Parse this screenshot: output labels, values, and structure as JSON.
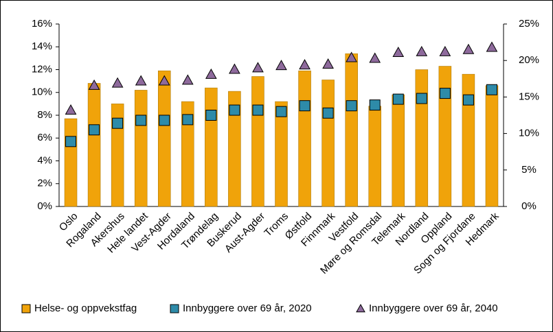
{
  "chart_data": {
    "type": "bar_line",
    "categories": [
      "Oslo",
      "Rogaland",
      "Akershus",
      "Hele landet",
      "Vest-Agder",
      "Hordaland",
      "Trøndelag",
      "Buskerud",
      "Aust-Agder",
      "Troms",
      "Østfold",
      "Finnmark",
      "Vestfold",
      "Møre og Romsdal",
      "Telemark",
      "Nordland",
      "Oppland",
      "Sogn og Fjordane",
      "Hedmark"
    ],
    "series": [
      {
        "name": "Helse- og oppvekstfag",
        "color": "#f0a30a",
        "kind": "bar",
        "axis": "y",
        "values": [
          7.7,
          10.8,
          9.0,
          10.2,
          11.9,
          9.2,
          10.4,
          10.1,
          11.4,
          9.2,
          11.9,
          11.1,
          13.4,
          8.8,
          9.8,
          12.0,
          12.3,
          11.6,
          10.6
        ]
      },
      {
        "name": "Innbyggere over 69 år, 2020",
        "color": "#2e8ba9",
        "kind": "square",
        "axis": "y2",
        "values": [
          8.9,
          10.5,
          11.4,
          11.8,
          11.8,
          11.9,
          12.5,
          13.2,
          13.2,
          13.0,
          13.8,
          12.8,
          13.8,
          13.9,
          14.7,
          14.8,
          15.5,
          14.6,
          16.0
        ]
      },
      {
        "name": "Innbyggere over 69 år, 2040",
        "color": "#8e6a9c",
        "kind": "triangle",
        "axis": "y2",
        "values": [
          13.2,
          16.6,
          16.9,
          17.2,
          17.2,
          17.3,
          18.1,
          18.8,
          19.0,
          19.3,
          19.4,
          19.5,
          20.4,
          20.3,
          21.1,
          21.2,
          21.2,
          21.5,
          21.8
        ]
      }
    ],
    "ylim": [
      0,
      16
    ],
    "yticks": [
      {
        "value": 0,
        "label": "0%"
      },
      {
        "value": 2,
        "label": "2%"
      },
      {
        "value": 4,
        "label": "4%"
      },
      {
        "value": 6,
        "label": "6%"
      },
      {
        "value": 8,
        "label": "8%"
      },
      {
        "value": 10,
        "label": "10%"
      },
      {
        "value": 12,
        "label": "12%"
      },
      {
        "value": 14,
        "label": "14%"
      },
      {
        "value": 16,
        "label": "16%"
      }
    ],
    "y2lim": [
      0,
      25
    ],
    "y2ticks": [
      {
        "value": 0,
        "label": "0%"
      },
      {
        "value": 5,
        "label": "5%"
      },
      {
        "value": 10,
        "label": "10%"
      },
      {
        "value": 15,
        "label": "15%"
      },
      {
        "value": 20,
        "label": "20%"
      },
      {
        "value": 25,
        "label": "25%"
      }
    ],
    "legend": "bottom"
  }
}
